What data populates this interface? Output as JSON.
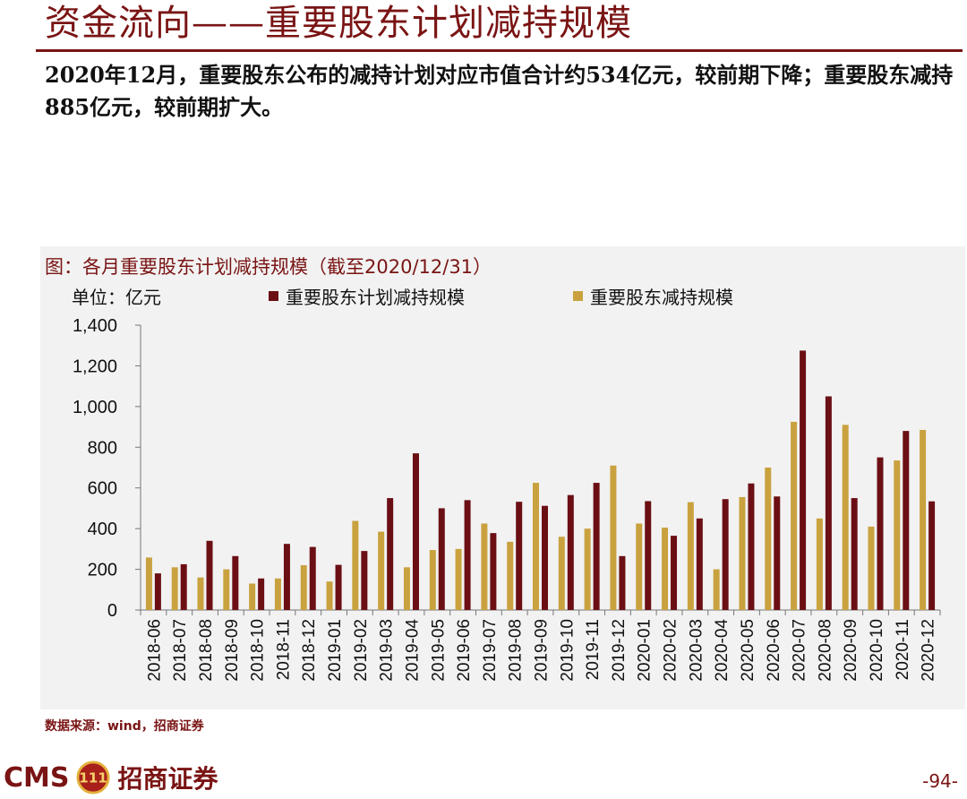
{
  "page": {
    "title": "资金流向——重要股东计划减持规模",
    "summary": "2020年12月，重要股东公布的减持计划对应市值合计约534亿元，较前期下降；重要股东减持885亿元，较前期扩大。",
    "source": "数据来源：wind，招商证券",
    "page_number": "-94-",
    "logo_cms": "CMS",
    "logo_emblem_text": "111",
    "logo_cn": "招商证券"
  },
  "chart_data": {
    "type": "bar",
    "title": "图：各月重要股东计划减持规模（截至2020/12/31）",
    "unit": "单位：亿元",
    "ylim": [
      0,
      1400
    ],
    "yticks": [
      0,
      200,
      400,
      600,
      800,
      1000,
      1200,
      1400
    ],
    "ytick_labels": [
      "0",
      "200",
      "400",
      "600",
      "800",
      "1,000",
      "1,200",
      "1,400"
    ],
    "legend_position": "top",
    "categories": [
      "2018-06",
      "2018-07",
      "2018-08",
      "2018-09",
      "2018-10",
      "2018-11",
      "2018-12",
      "2019-01",
      "2019-02",
      "2019-03",
      "2019-04",
      "2019-05",
      "2019-06",
      "2019-07",
      "2019-08",
      "2019-09",
      "2019-10",
      "2019-11",
      "2019-12",
      "2020-01",
      "2020-02",
      "2020-03",
      "2020-04",
      "2020-05",
      "2020-06",
      "2020-07",
      "2020-08",
      "2020-09",
      "2020-10",
      "2020-11",
      "2020-12"
    ],
    "series": [
      {
        "name": "重要股东减持规模",
        "color": "#c9a23f",
        "values": [
          258,
          210,
          160,
          200,
          130,
          155,
          220,
          140,
          438,
          385,
          210,
          295,
          300,
          425,
          335,
          625,
          360,
          400,
          710,
          425,
          405,
          530,
          200,
          555,
          700,
          925,
          450,
          910,
          410,
          735,
          885
        ]
      },
      {
        "name": "重要股东计划减持规模",
        "color": "#6b0f14",
        "values": [
          180,
          225,
          340,
          265,
          155,
          325,
          310,
          222,
          290,
          550,
          770,
          500,
          540,
          378,
          532,
          512,
          565,
          625,
          265,
          535,
          365,
          450,
          545,
          622,
          558,
          1275,
          1050,
          550,
          750,
          880,
          534
        ]
      }
    ]
  }
}
